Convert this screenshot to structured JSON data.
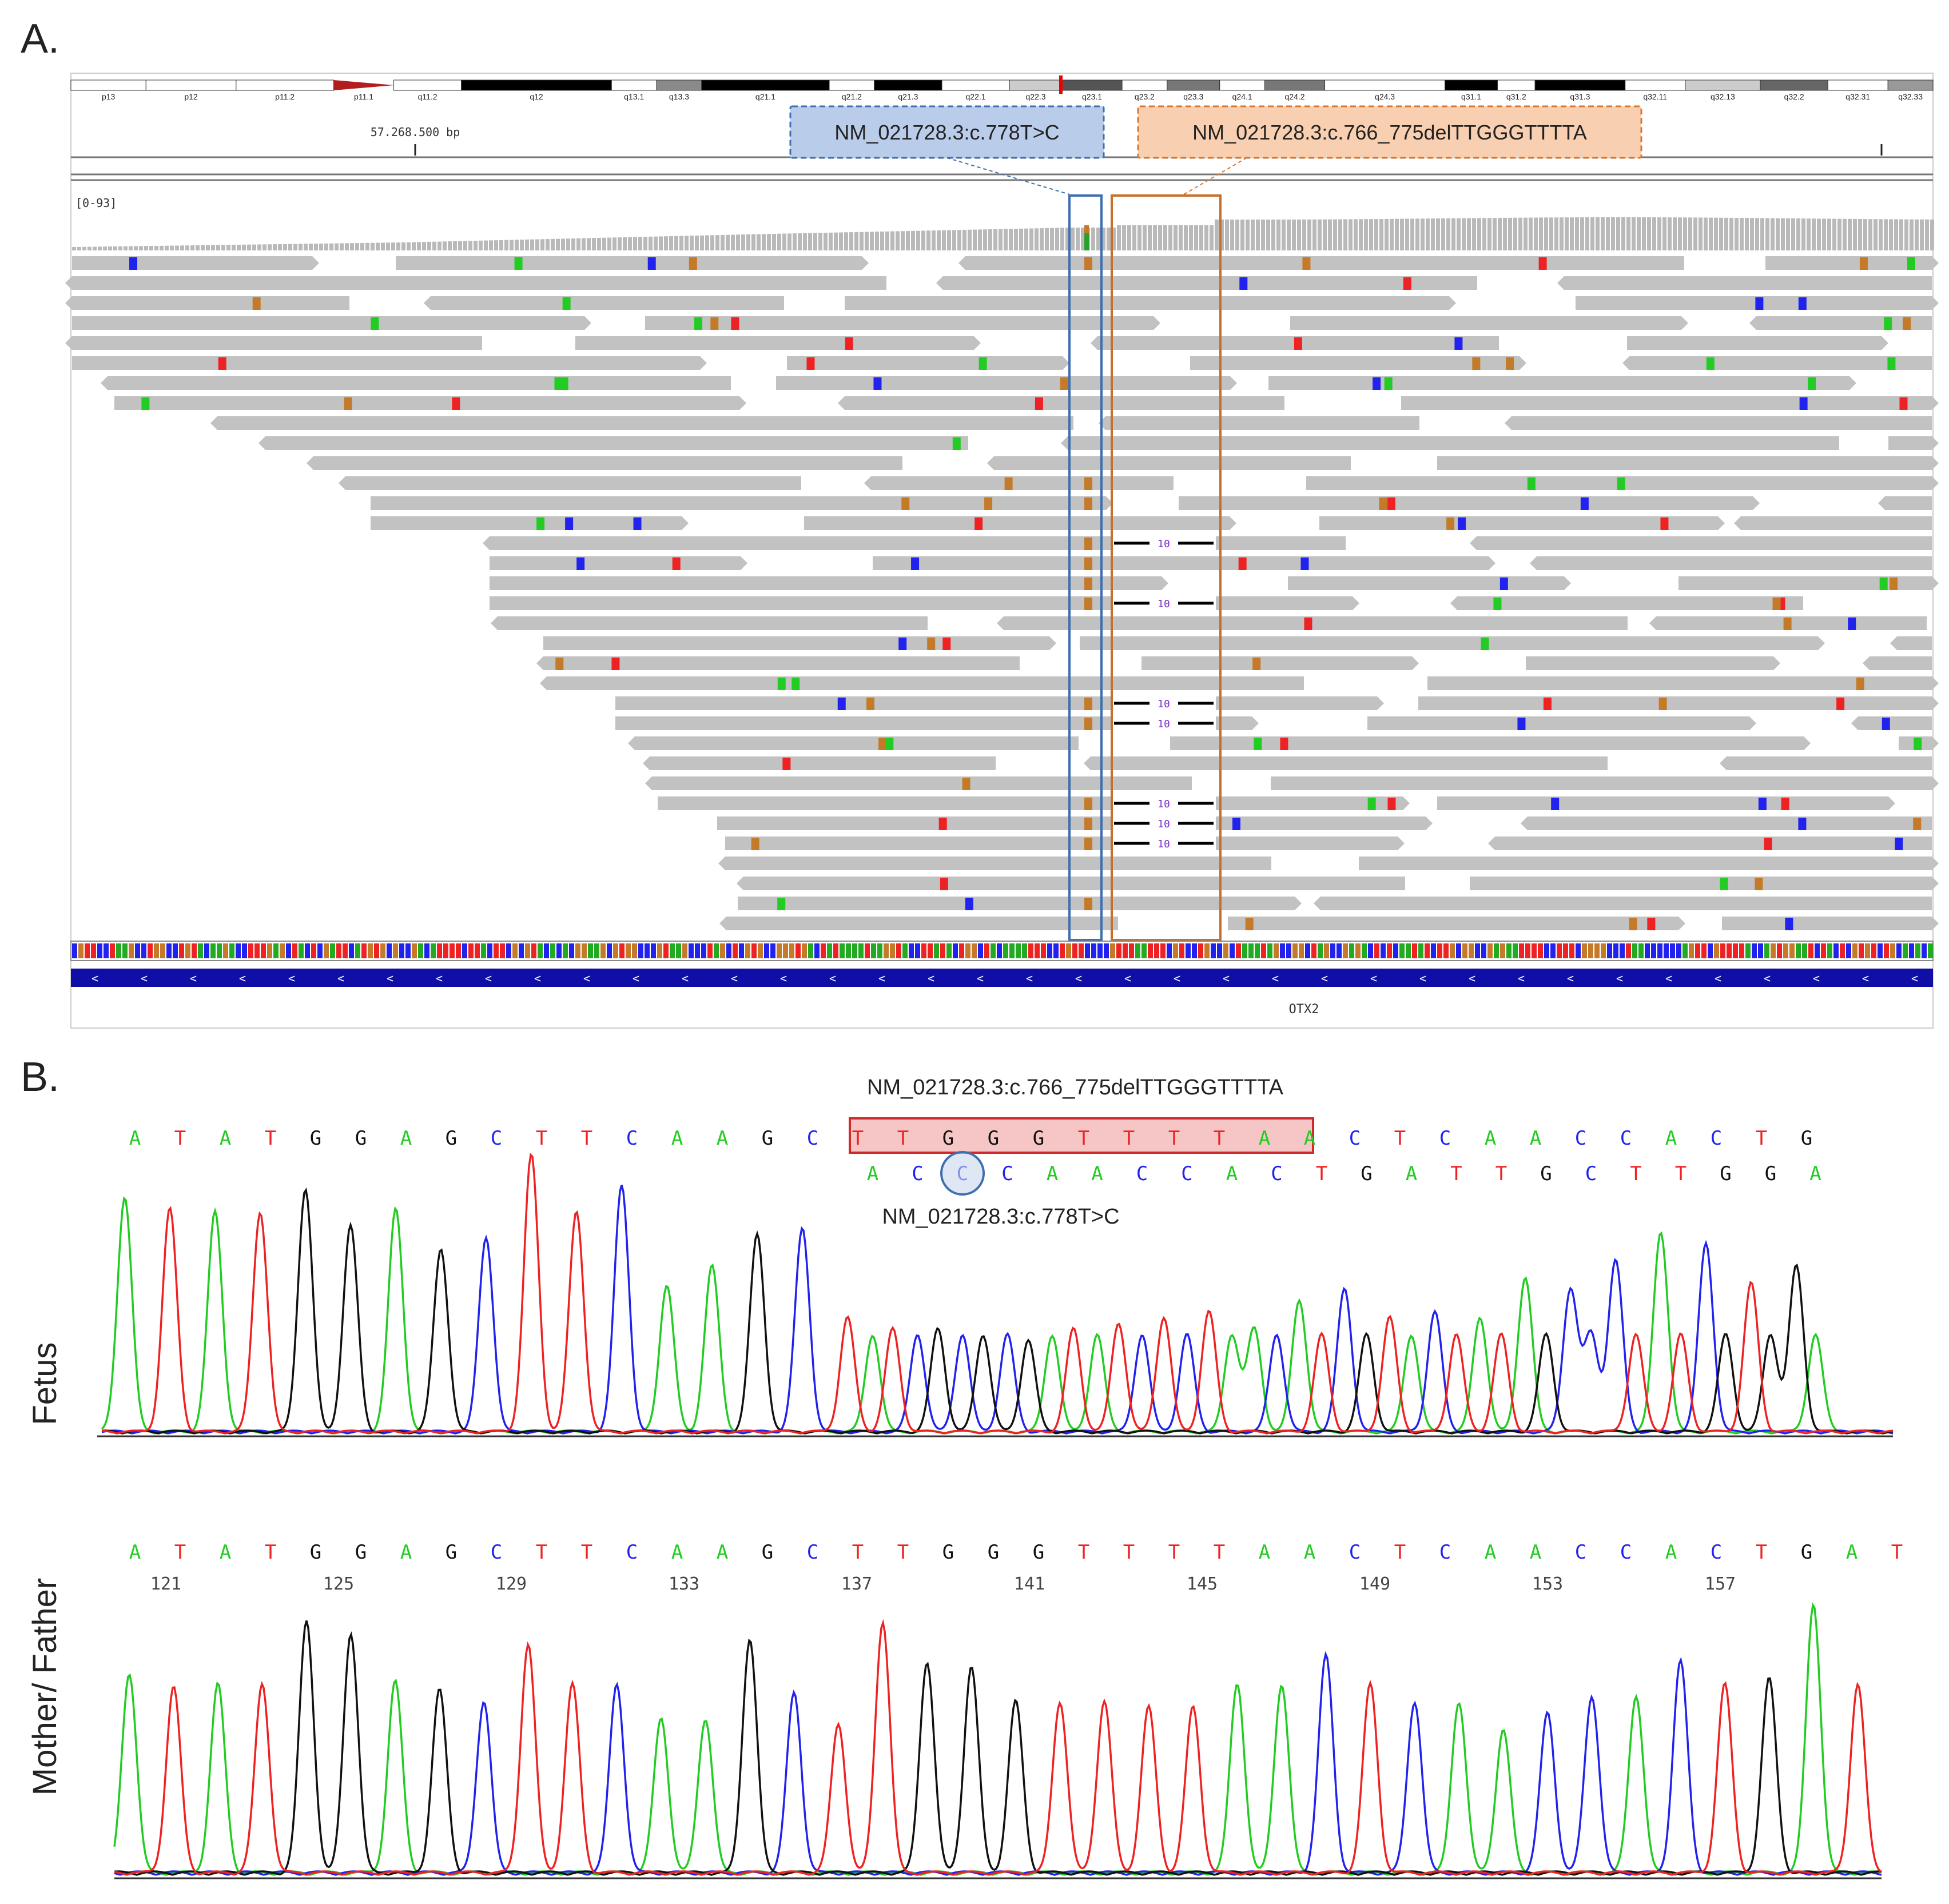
{
  "panel_a": {
    "label": "A.",
    "bands": [
      "p13",
      "p12",
      "p11.2",
      "p11.1",
      "q11.2",
      "q12",
      "q13.1",
      "q13.3",
      "q21.1",
      "q21.2",
      "q21.3",
      "q22.1",
      "q22.3",
      "q23.1",
      "q23.2",
      "q23.3",
      "q24.1",
      "q24.2",
      "q24.3",
      "q31.1",
      "q31.2",
      "q31.3",
      "q32.11",
      "q32.13",
      "q32.2",
      "q32.31",
      "q32.33"
    ],
    "position_label": "57.268.500 bp",
    "coverage_label": "[0-93]",
    "variant_snv": "NM_021728.3:c.778T>C",
    "variant_del": "NM_021728.3:c.766_775delTTGGGTTTTA",
    "deletion_length_label": "10",
    "gene_label": "OTX2"
  },
  "panel_b": {
    "label": "B.",
    "variant_del": "NM_021728.3:c.766_775delTTGGGTTTTA",
    "variant_snv": "NM_021728.3:c.778T>C",
    "fetus_label": "Fetus",
    "parents_label": "Mother/ Father",
    "fetus_seq_1": [
      "A",
      "T",
      "A",
      "T",
      "G",
      "G",
      "A",
      "G",
      "C",
      "T",
      "T",
      "C",
      "A",
      "A",
      "G",
      "C",
      "T",
      "T",
      "G",
      "G",
      "G",
      "T",
      "T",
      "T",
      "T",
      "A",
      "A",
      "C",
      "T",
      "C",
      "A",
      "A",
      "C",
      "C",
      "A",
      "C",
      "T",
      "G"
    ],
    "fetus_seq_2": [
      "A",
      "C",
      "C",
      "C",
      "A",
      "A",
      "C",
      "C",
      "A",
      "C",
      "T",
      "G",
      "A",
      "T",
      "T",
      "G",
      "C",
      "T",
      "T",
      "G",
      "G",
      "A"
    ],
    "parent_seq": [
      "A",
      "T",
      "A",
      "T",
      "G",
      "G",
      "A",
      "G",
      "C",
      "T",
      "T",
      "C",
      "A",
      "A",
      "G",
      "C",
      "T",
      "T",
      "G",
      "G",
      "G",
      "T",
      "T",
      "T",
      "T",
      "A",
      "A",
      "C",
      "T",
      "C",
      "A",
      "A",
      "C",
      "C",
      "A",
      "C",
      "T",
      "G",
      "A",
      "T"
    ],
    "position_numbers": [
      "121",
      "125",
      "129",
      "133",
      "137",
      "141",
      "145",
      "149",
      "153",
      "157"
    ]
  },
  "colors": {
    "A": "#22cc22",
    "C": "#2222ee",
    "G": "#111111",
    "T": "#ee2222"
  }
}
